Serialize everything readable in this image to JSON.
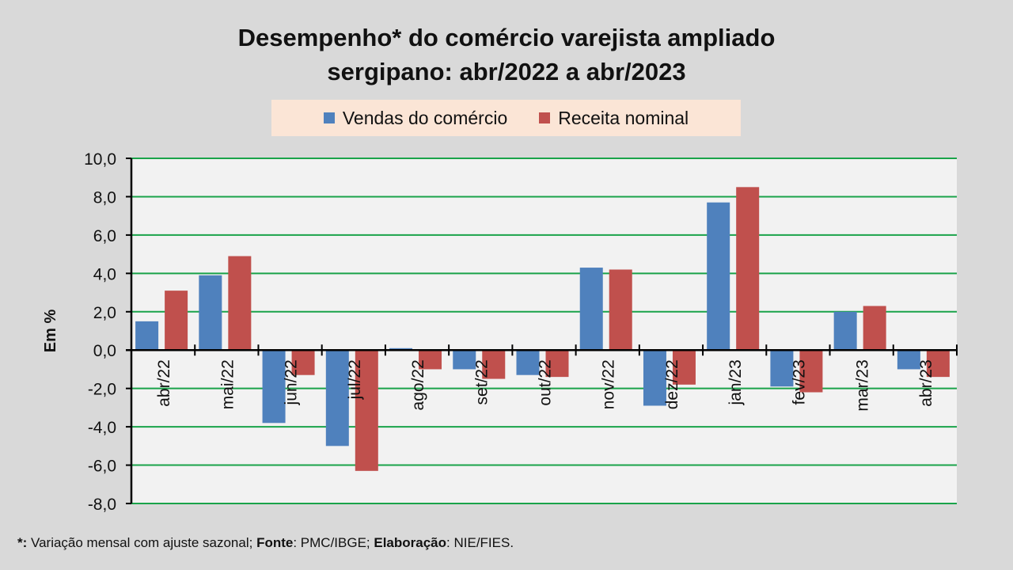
{
  "colors": {
    "vendas": "#4f81bd",
    "receita": "#c0504d",
    "grid": "#1aa34a",
    "plot_bg": "#f2f2f2",
    "legend_bg": "#fbe5d6"
  },
  "footnote": {
    "star_label": "*:",
    "text1": " Variação mensal com ajuste sazonal; ",
    "fonte_label": "Fonte",
    "text2": ": PMC/IBGE; ",
    "elab_label": "Elaboração",
    "text3": ": NIE/FIES."
  },
  "chart_data": {
    "type": "bar",
    "title_line1": "Desempenho* do comércio varejista ampliado",
    "title_line2": "sergipano: abr/2022 a abr/2023",
    "ylabel": "Em %",
    "xlabel": "",
    "ylim": [
      -8,
      10
    ],
    "yticks": [
      "10,0",
      "8,0",
      "6,0",
      "4,0",
      "2,0",
      "0,0",
      "-2,0",
      "-4,0",
      "-6,0",
      "-8,0"
    ],
    "ytick_values": [
      10,
      8,
      6,
      4,
      2,
      0,
      -2,
      -4,
      -6,
      -8
    ],
    "grid": true,
    "legend_position": "top-center",
    "categories": [
      "abr/22",
      "mai/22",
      "jun/22",
      "jul/22",
      "ago/22",
      "set/22",
      "out/22",
      "nov/22",
      "dez/22",
      "jan/23",
      "fev/23",
      "mar/23",
      "abr/23"
    ],
    "series": [
      {
        "name": "Vendas do comércio",
        "values": [
          1.5,
          3.9,
          -3.8,
          -5.0,
          0.1,
          -1.0,
          -1.3,
          4.3,
          -2.9,
          7.7,
          -1.9,
          2.0,
          -1.0
        ]
      },
      {
        "name": "Receita nominal",
        "values": [
          3.1,
          4.9,
          -1.3,
          -6.3,
          -1.0,
          -1.5,
          -1.4,
          4.2,
          -1.8,
          8.5,
          -2.2,
          2.3,
          -1.4
        ]
      }
    ]
  }
}
